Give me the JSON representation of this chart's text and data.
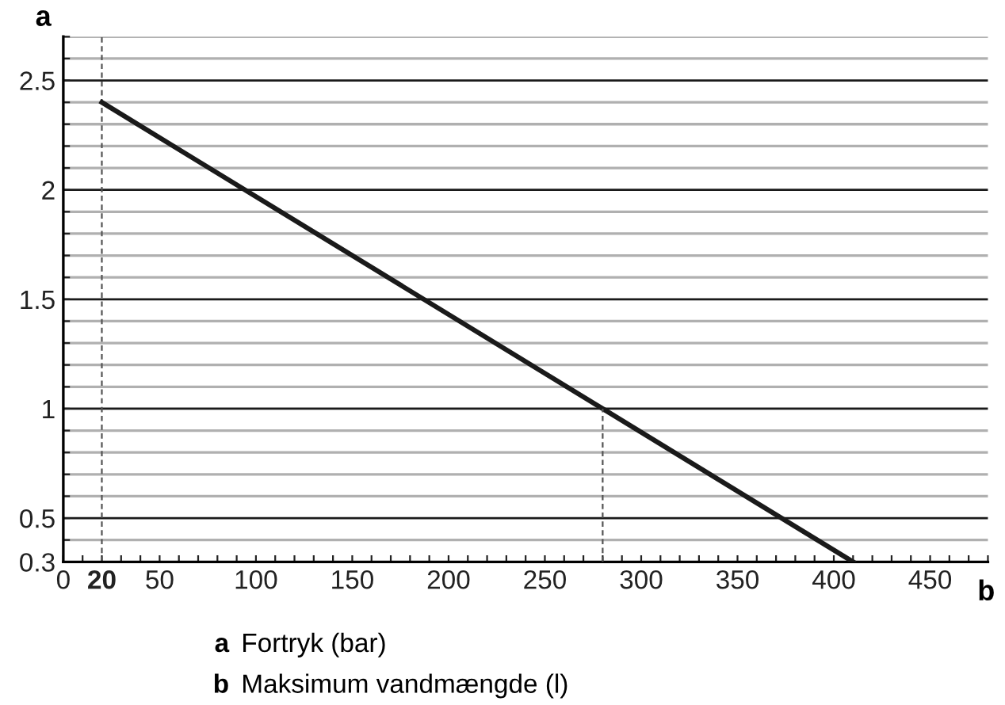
{
  "chart_data": {
    "type": "line",
    "ylabel": "a",
    "xlabel": "b",
    "x": [
      20,
      410
    ],
    "series": [
      {
        "color": "#1a1a1a",
        "values": [
          2.4,
          0.3
        ]
      },
      {
        "type": "line",
        "x": [
          280,
          280
        ],
        "values": [
          0.3,
          1.0
        ],
        "color": "#555555",
        "line_style": "dashed"
      }
    ],
    "xlim": [
      0,
      480
    ],
    "xticks": [
      0,
      {
        "value": 10,
        "label": null
      },
      20,
      {
        "value": 30,
        "label": null
      },
      {
        "value": 40,
        "label": null
      },
      50,
      {
        "value": 60,
        "label": null
      },
      {
        "value": 70,
        "label": null
      },
      {
        "value": 80,
        "label": null
      },
      {
        "value": 90,
        "label": null
      },
      100,
      {
        "value": 110,
        "label": null
      },
      {
        "value": 120,
        "label": null
      },
      {
        "value": 130,
        "label": null
      },
      {
        "value": 140,
        "label": null
      },
      150,
      {
        "value": 160,
        "label": null
      },
      {
        "value": 170,
        "label": null
      },
      {
        "value": 180,
        "label": null
      },
      {
        "value": 190,
        "label": null
      },
      200,
      {
        "value": 210,
        "label": null
      },
      {
        "value": 220,
        "label": null
      },
      {
        "value": 230,
        "label": null
      },
      {
        "value": 240,
        "label": null
      },
      250,
      {
        "value": 260,
        "label": null
      },
      {
        "value": 270,
        "label": null
      },
      {
        "value": 280,
        "label": null
      },
      {
        "value": 290,
        "label": null
      },
      300,
      {
        "value": 310,
        "label": null
      },
      {
        "value": 320,
        "label": null
      },
      {
        "value": 330,
        "label": null
      },
      {
        "value": 340,
        "label": null
      },
      350,
      {
        "value": 360,
        "label": null
      },
      {
        "value": 370,
        "label": null
      },
      {
        "value": 380,
        "label": null
      },
      {
        "value": 390,
        "label": null
      },
      400,
      {
        "value": 410,
        "label": null
      },
      {
        "value": 420,
        "label": null
      },
      {
        "value": 430,
        "label": null
      },
      {
        "value": 440,
        "label": null
      },
      450,
      {
        "value": 460,
        "label": null
      },
      {
        "value": 470,
        "label": null
      },
      {
        "value": 480,
        "label": null
      }
    ],
    "ylim": [
      0.3,
      2.7
    ],
    "yticks": [
      0.3,
      {
        "value": 0.4,
        "label": null
      },
      0.5,
      {
        "value": 0.6,
        "label": null
      },
      {
        "value": 0.7,
        "label": null
      },
      {
        "value": 0.8,
        "label": null
      },
      {
        "value": 0.9,
        "label": null
      },
      1,
      {
        "value": 1.1,
        "label": null
      },
      {
        "value": 1.2,
        "label": null
      },
      {
        "value": 1.3,
        "label": null
      },
      {
        "value": 1.4,
        "label": null
      },
      1.5,
      {
        "value": 1.6,
        "label": null
      },
      {
        "value": 1.7,
        "label": null
      },
      {
        "value": 1.8,
        "label": null
      },
      {
        "value": 1.9,
        "label": null
      },
      2,
      {
        "value": 2.1,
        "label": null
      },
      {
        "value": 2.2,
        "label": null
      },
      {
        "value": 2.3,
        "label": null
      },
      {
        "value": 2.4,
        "label": null
      },
      2.5,
      {
        "value": 2.6,
        "label": null
      },
      {
        "value": 2.7,
        "label": null
      }
    ],
    "grid": "y",
    "ref_lines": [
      {
        "axis": "x",
        "value": 20,
        "color": "#555555",
        "line_style": "dashed"
      }
    ],
    "annotations": [
      "a Fortryk (bar)",
      "b Maksimum vandmængde (l)"
    ]
  }
}
